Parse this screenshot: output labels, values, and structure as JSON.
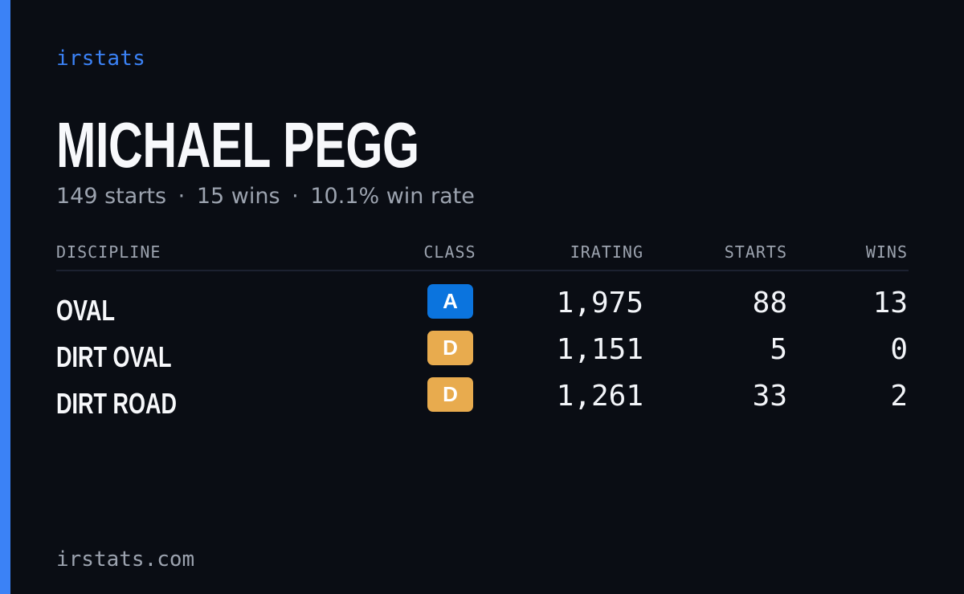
{
  "brand": "irstats",
  "driver": {
    "name": "MICHAEL PEGG",
    "summary": {
      "starts": "149 starts",
      "wins": "15 wins",
      "win_rate": "10.1% win rate",
      "separator": "·"
    }
  },
  "table": {
    "headers": {
      "discipline": "DISCIPLINE",
      "class": "CLASS",
      "irating": "IRATING",
      "starts": "STARTS",
      "wins": "WINS"
    },
    "rows": [
      {
        "discipline": "OVAL",
        "class": "A",
        "class_color": "#0b74de",
        "irating": "1,975",
        "starts": "88",
        "wins": "13"
      },
      {
        "discipline": "DIRT OVAL",
        "class": "D",
        "class_color": "#e8ab4e",
        "irating": "1,151",
        "starts": "5",
        "wins": "0"
      },
      {
        "discipline": "DIRT ROAD",
        "class": "D",
        "class_color": "#e8ab4e",
        "irating": "1,261",
        "starts": "33",
        "wins": "2"
      }
    ]
  },
  "footer": {
    "url": "irstats.com"
  },
  "colors": {
    "background": "#0a0d14",
    "accent": "#3b82f6",
    "muted_text": "#9ca3af",
    "class_a": "#0b74de",
    "class_d": "#e8ab4e"
  }
}
